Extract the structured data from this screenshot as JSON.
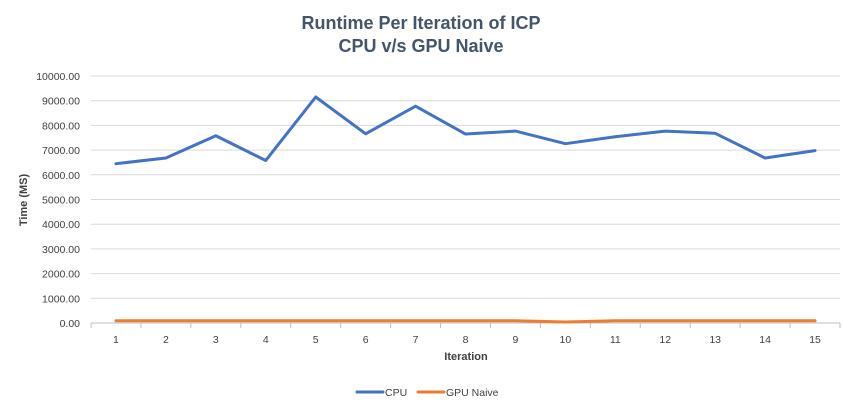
{
  "chart_data": {
    "type": "line",
    "title": "Runtime Per Iteration of ICP",
    "subtitle": "CPU v/s GPU Naive",
    "xlabel": "Iteration",
    "ylabel": "Time (MS)",
    "ylim": [
      0,
      10000
    ],
    "y_ticks": [
      "0.00",
      "1000.00",
      "2000.00",
      "3000.00",
      "4000.00",
      "5000.00",
      "6000.00",
      "7000.00",
      "8000.00",
      "9000.00",
      "10000.00"
    ],
    "y_tick_values": [
      0,
      1000,
      2000,
      3000,
      4000,
      5000,
      6000,
      7000,
      8000,
      9000,
      10000
    ],
    "categories": [
      "1",
      "2",
      "3",
      "4",
      "5",
      "6",
      "7",
      "8",
      "9",
      "10",
      "11",
      "12",
      "13",
      "14",
      "15"
    ],
    "grid": true,
    "legend_position": "bottom",
    "series": [
      {
        "name": "CPU",
        "color": "#4472c4",
        "values": [
          6450,
          6680,
          7580,
          6580,
          9150,
          7660,
          8780,
          7650,
          7770,
          7260,
          7540,
          7770,
          7680,
          6680,
          6980
        ]
      },
      {
        "name": "GPU Naive",
        "color": "#ed7d31",
        "values": [
          90,
          90,
          90,
          90,
          90,
          90,
          90,
          90,
          90,
          40,
          90,
          90,
          90,
          90,
          90
        ]
      }
    ]
  }
}
